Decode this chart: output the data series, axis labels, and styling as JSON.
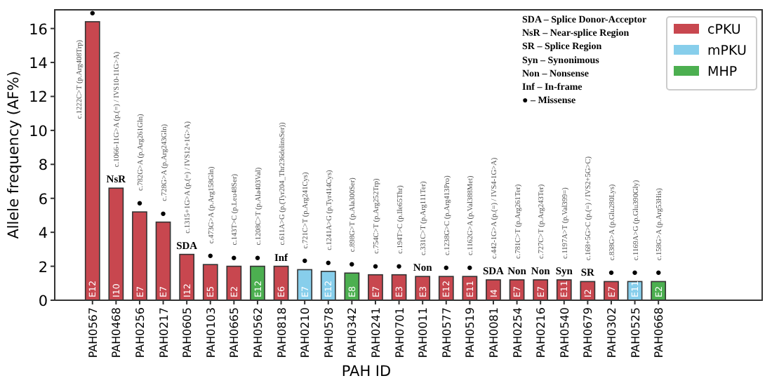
{
  "chart_data": {
    "type": "bar",
    "xlabel": "PAH ID",
    "ylabel": "Allele frequency (AF%)",
    "categories": [
      "PAH0567",
      "PAH0468",
      "PAH0256",
      "PAH0217",
      "PAH0605",
      "PAH0103",
      "PAH0665",
      "PAH0562",
      "PAH0818",
      "PAH0210",
      "PAH0578",
      "PAH0342",
      "PAH0241",
      "PAH0701",
      "PAH0011",
      "PAH0577",
      "PAH0519",
      "PAH0081",
      "PAH0254",
      "PAH0216",
      "PAH0540",
      "PAH0679",
      "PAH0302",
      "PAH0525",
      "PAH0668"
    ],
    "series": [
      {
        "name": "cPKU",
        "color": "#c8474f",
        "values": [
          16.4,
          6.6,
          5.2,
          4.6,
          2.7,
          2.1,
          2.0,
          null,
          2.0,
          null,
          null,
          null,
          1.5,
          1.5,
          1.4,
          1.4,
          1.4,
          1.2,
          1.2,
          1.2,
          1.2,
          1.1,
          1.1,
          null,
          null
        ]
      },
      {
        "name": "mPKU",
        "color": "#87ceeb",
        "values": [
          null,
          null,
          null,
          null,
          null,
          null,
          null,
          null,
          null,
          1.8,
          1.7,
          null,
          null,
          null,
          null,
          null,
          null,
          null,
          null,
          null,
          null,
          null,
          null,
          1.1,
          null
        ]
      },
      {
        "name": "MHP",
        "color": "#4caf50",
        "values": [
          null,
          null,
          null,
          null,
          null,
          null,
          null,
          2.0,
          null,
          null,
          null,
          1.6,
          null,
          null,
          null,
          null,
          null,
          null,
          null,
          null,
          null,
          null,
          null,
          null,
          1.1
        ]
      }
    ],
    "ylim": [
      0,
      17.1
    ],
    "yticks": [
      0,
      2,
      4,
      6,
      8,
      10,
      12,
      14,
      16
    ],
    "legend": "top right",
    "annotations": [
      "SDA – Splice Donor-Acceptor",
      "NsR – Near-splice Region",
      "SR – Splice Region",
      "Syn – Synonimous",
      "Non – Nonsense",
      "Inf – In-frame",
      "● – Missense",
      {
        "text": "●",
        "x": "PAH0567",
        "y": 16.4
      },
      {
        "text": "c.1222C>T (p.Arg408Trp)",
        "x": "PAH0567",
        "y": 13
      },
      {
        "text": "E12",
        "x": "PAH0567",
        "y": 0
      },
      {
        "text": "NsR",
        "x": "PAH0468",
        "y": 6.6
      },
      {
        "text": "c.1066-11G>A (p.(=) / IVS10-11G>A)",
        "x": "PAH0468",
        "y": 6.6
      },
      {
        "text": "I10",
        "x": "PAH0468",
        "y": 0
      },
      {
        "text": "●",
        "x": "PAH0256",
        "y": 5.2
      },
      {
        "text": "c.782G>A (p.Arg261Gln)",
        "x": "PAH0256",
        "y": 5.2
      },
      {
        "text": "E7",
        "x": "PAH0256",
        "y": 0
      },
      {
        "text": "●",
        "x": "PAH0217",
        "y": 4.6
      },
      {
        "text": "c.728G>A (p.Arg243Gln)",
        "x": "PAH0217",
        "y": 4.6
      },
      {
        "text": "E7",
        "x": "PAH0217",
        "y": 0
      },
      {
        "text": "SDA",
        "x": "PAH0605",
        "y": 2.7
      },
      {
        "text": "c.1315+1G>A (p.(=) / IVS12+1G>A)",
        "x": "PAH0605",
        "y": 2.7
      },
      {
        "text": "I12",
        "x": "PAH0605",
        "y": 0
      },
      {
        "text": "●",
        "x": "PAH0103",
        "y": 2.1
      },
      {
        "text": "c.473G>A (p.Arg158Gln)",
        "x": "PAH0103",
        "y": 2.1
      },
      {
        "text": "E5",
        "x": "PAH0103",
        "y": 0
      },
      {
        "text": "●",
        "x": "PAH0665",
        "y": 2.0
      },
      {
        "text": "c.143T>C (p.Leu48Ser)",
        "x": "PAH0665",
        "y": 2.0
      },
      {
        "text": "E2",
        "x": "PAH0665",
        "y": 0
      },
      {
        "text": "●",
        "x": "PAH0562",
        "y": 2.0
      },
      {
        "text": "c.1208C>T (p.Ala403Val)",
        "x": "PAH0562",
        "y": 2.0
      },
      {
        "text": "E12",
        "x": "PAH0562",
        "y": 0
      },
      {
        "text": "Inf",
        "x": "PAH0818",
        "y": 2.0
      },
      {
        "text": "c.611A>G (p.(Tyr204_Thr236delinsSer))",
        "x": "PAH0818",
        "y": 2.0
      },
      {
        "text": "E6",
        "x": "PAH0818",
        "y": 0
      },
      {
        "text": "●",
        "x": "PAH0210",
        "y": 1.8
      },
      {
        "text": "c.721C>T (p.Arg241Cys)",
        "x": "PAH0210",
        "y": 1.8
      },
      {
        "text": "E7",
        "x": "PAH0210",
        "y": 0
      },
      {
        "text": "●",
        "x": "PAH0578",
        "y": 1.7
      },
      {
        "text": "c.1241A>G (p.Tyr414Cys)",
        "x": "PAH0578",
        "y": 1.7
      },
      {
        "text": "E12",
        "x": "PAH0578",
        "y": 0
      },
      {
        "text": "●",
        "x": "PAH0342",
        "y": 1.6
      },
      {
        "text": "c.898G>T (p.Ala300Ser)",
        "x": "PAH0342",
        "y": 1.6
      },
      {
        "text": "E8",
        "x": "PAH0342",
        "y": 0
      },
      {
        "text": "●",
        "x": "PAH0241",
        "y": 1.5
      },
      {
        "text": "c.754C>T (p.Arg252Trp)",
        "x": "PAH0241",
        "y": 1.5
      },
      {
        "text": "E7",
        "x": "PAH0241",
        "y": 0
      },
      {
        "text": "●",
        "x": "PAH0701",
        "y": 1.5
      },
      {
        "text": "c.194T>C (p.Ile65Thr)",
        "x": "PAH0701",
        "y": 1.5
      },
      {
        "text": "E3",
        "x": "PAH0701",
        "y": 0
      },
      {
        "text": "Non",
        "x": "PAH0011",
        "y": 1.4
      },
      {
        "text": "c.331C>T (p.Arg111Ter)",
        "x": "PAH0011",
        "y": 1.4
      },
      {
        "text": "E3",
        "x": "PAH0011",
        "y": 0
      },
      {
        "text": "●",
        "x": "PAH0577",
        "y": 1.4
      },
      {
        "text": "c.1238G>C (p.Arg413Pro)",
        "x": "PAH0577",
        "y": 1.4
      },
      {
        "text": "E12",
        "x": "PAH0577",
        "y": 0
      },
      {
        "text": "●",
        "x": "PAH0519",
        "y": 1.4
      },
      {
        "text": "c.1162G>A (p.Val388Met)",
        "x": "PAH0519",
        "y": 1.4
      },
      {
        "text": "E11",
        "x": "PAH0519",
        "y": 0
      },
      {
        "text": "SDA",
        "x": "PAH0081",
        "y": 1.2
      },
      {
        "text": "c.442-1G>A (p.(=) / IVS4-1G>A)",
        "x": "PAH0081",
        "y": 1.2
      },
      {
        "text": "I4",
        "x": "PAH0081",
        "y": 0
      },
      {
        "text": "Non",
        "x": "PAH0254",
        "y": 1.2
      },
      {
        "text": "c.781C>T (p.Arg261Ter)",
        "x": "PAH0254",
        "y": 1.2
      },
      {
        "text": "E7",
        "x": "PAH0254",
        "y": 0
      },
      {
        "text": "Non",
        "x": "PAH0216",
        "y": 1.2
      },
      {
        "text": "c.727C>T (p.Arg243Ter)",
        "x": "PAH0216",
        "y": 1.2
      },
      {
        "text": "E7",
        "x": "PAH0216",
        "y": 0
      },
      {
        "text": "Syn",
        "x": "PAH0540",
        "y": 1.2
      },
      {
        "text": "c.1197A>T (p.Val399=)",
        "x": "PAH0540",
        "y": 1.2
      },
      {
        "text": "E11",
        "x": "PAH0540",
        "y": 0
      },
      {
        "text": "SR",
        "x": "PAH0679",
        "y": 1.1
      },
      {
        "text": "c.168+5G>C (p.(=) / IVS2+5G>C)",
        "x": "PAH0679",
        "y": 1.1
      },
      {
        "text": "I2",
        "x": "PAH0679",
        "y": 0
      },
      {
        "text": "●",
        "x": "PAH0302",
        "y": 1.1
      },
      {
        "text": "c.838G>A (p.Glu280Lys)",
        "x": "PAH0302",
        "y": 1.1
      },
      {
        "text": "E7",
        "x": "PAH0302",
        "y": 0
      },
      {
        "text": "●",
        "x": "PAH0525",
        "y": 1.1
      },
      {
        "text": "c.1169A>G (p.Glu390Gly)",
        "x": "PAH0525",
        "y": 1.1
      },
      {
        "text": "E11",
        "x": "PAH0525",
        "y": 0
      },
      {
        "text": "●",
        "x": "PAH0668",
        "y": 1.1
      },
      {
        "text": "c.158G>A (p.Arg53His)",
        "x": "PAH0668",
        "y": 1.1
      },
      {
        "text": "E2",
        "x": "PAH0668",
        "y": 0
      }
    ]
  }
}
